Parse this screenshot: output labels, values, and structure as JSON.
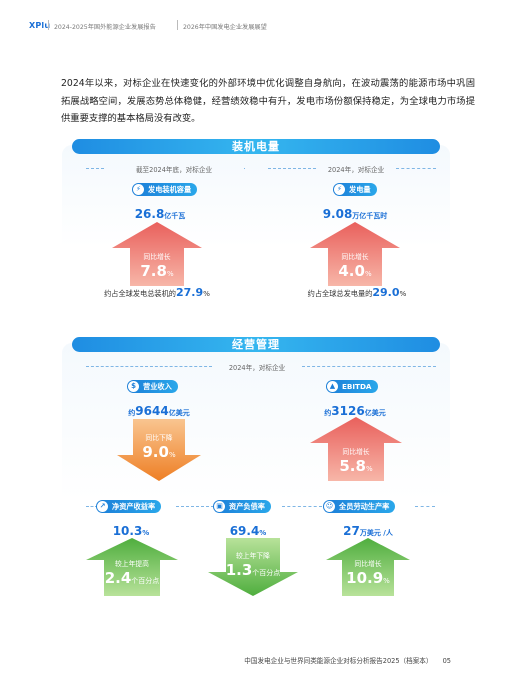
{
  "header": {
    "logo": "XPlu",
    "title1": "2024-2025年国外能源企业发展报告",
    "title2": "2026年中国发电企业发展展望"
  },
  "intro": "2024年以来，对标企业在快速变化的外部环境中优化调整自身航向，在波动震荡的能源市场中巩固拓展战略空间，发展态势总体稳健，经营绩效稳中有升，发电市场份额保持稳定，为全球电力市场提供重要支撑的基本格局没有改变。",
  "installed": {
    "title": "装机电量",
    "left": {
      "subheader": "截至2024年底，对标企业",
      "pill": "发电装机容量",
      "value": "26.8",
      "unit": "亿千瓦",
      "arrow_label": "同比增长",
      "arrow_value": "7.8",
      "arrow_unit": "%",
      "share_prefix": "约占全球发电总装机的",
      "share_value": "27.9",
      "share_unit": "%"
    },
    "right": {
      "subheader": "2024年，对标企业",
      "pill": "发电量",
      "value": "9.08",
      "unit": "万亿千瓦时",
      "arrow_label": "同比增长",
      "arrow_value": "4.0",
      "arrow_unit": "%",
      "share_prefix": "约占全球总发电量的",
      "share_value": "29.0",
      "share_unit": "%"
    }
  },
  "operations": {
    "title": "经营管理",
    "subheader": "2024年，对标企业",
    "revenue": {
      "pill": "营业收入",
      "prefix": "约",
      "value": "9644",
      "unit": "亿美元",
      "arrow_label": "同比下降",
      "arrow_value": "9.0",
      "arrow_unit": "%"
    },
    "ebitda": {
      "pill": "EBITDA",
      "prefix": "约",
      "value": "3126",
      "unit": "亿美元",
      "arrow_label": "同比增长",
      "arrow_value": "5.8",
      "arrow_unit": "%"
    },
    "roe": {
      "pill": "净资产收益率",
      "value": "10.3",
      "unit": "%",
      "arrow_label": "较上年提高",
      "arrow_value": "2.4",
      "arrow_unit": "个百分点"
    },
    "debt": {
      "pill": "资产负债率",
      "value": "69.4",
      "unit": "%",
      "arrow_label": "较上年下降",
      "arrow_value": "1.3",
      "arrow_unit": "个百分点"
    },
    "productivity": {
      "pill": "全员劳动生产率",
      "value": "27",
      "unit": "万美元 /人",
      "arrow_label": "同比增长",
      "arrow_value": "10.9",
      "arrow_unit": "%"
    }
  },
  "icons": {
    "capacity": "lightning-plug-icon",
    "generation": "lightning-icon",
    "revenue": "dollar-icon",
    "ebitda": "chart-icon",
    "roe": "growth-icon",
    "debt": "wallet-icon",
    "productivity": "people-icon"
  },
  "colors": {
    "accent": "#1a6fd6",
    "red_arrow": "#e35a5a",
    "orange_arrow": "#f08a2e",
    "green_arrow": "#6cc04a"
  },
  "footer": {
    "text": "中国发电企业与世界同类能源企业对标分析报告2025（档案本）",
    "page": "05"
  }
}
